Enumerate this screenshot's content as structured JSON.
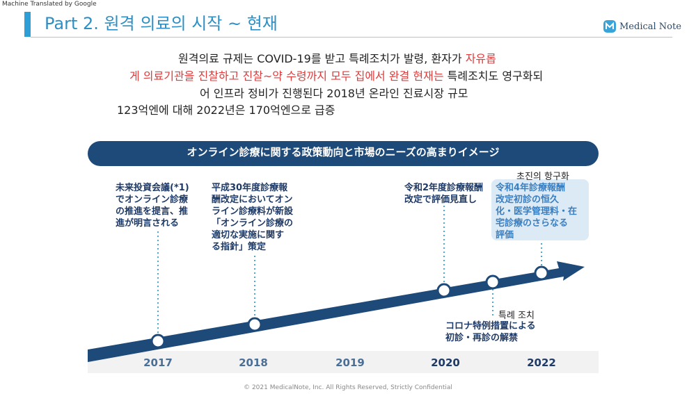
{
  "machine_translated": "Machine Translated by Google",
  "title": "Part 2. 원격 의료의 시작 ~ 현재",
  "logo_text": "Medical Note",
  "body": {
    "line1_a": "원격의료 규제는 COVID-19를 받고 특례조치가 발령, 환자가 ",
    "line1_red": "자유롭",
    "line2_red": "게 의료기관을 진찰하고 진찰~약 수령까지 모두 집에서 완결 현재는",
    "line2_b": " 특례조치도 영구화되",
    "line3": "어 인프라 정비가 진행된다 2018년 온라인 진료시장 규모",
    "line4": "123억엔에 대해 2022년은 170억엔으로 급증"
  },
  "banner_title": "オンライン診療に関する政策動向と市場のニーズの高まりイメージ",
  "events": {
    "e2017": [
      "未来投資会議(*1)",
      "でオンライン診療",
      "の推進を提言、推",
      "進が明言される"
    ],
    "e2018": [
      "平成30年度診療報",
      "酬改定においてオン",
      "ライン診療料が新設",
      "「オンライン診療の",
      "適切な実施に関す",
      "る指針」策定"
    ],
    "e2020": [
      "令和2年度診療報酬",
      "改定で評価見直し"
    ],
    "e2022": [
      "令和4年診療報酬",
      "改定初診の恒久",
      "化・医学管理料・在",
      "宅診療のさらなる",
      "評価"
    ],
    "covid": [
      "コロナ特例措置による",
      "初診・再診の解禁"
    ]
  },
  "annotations": {
    "first_visit": "초진의 항구화",
    "special": "특례 조치"
  },
  "years": [
    "2017",
    "2018",
    "2019",
    "2020",
    "2022"
  ],
  "footer": "© 2021 MedicalNote, Inc. All Rights Reserved, Strictly Confidential"
}
